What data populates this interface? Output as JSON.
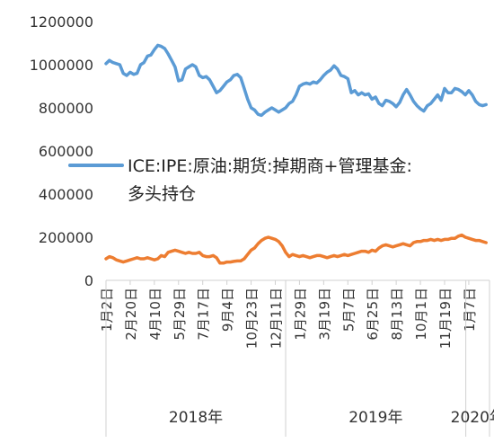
{
  "chart_data": {
    "type": "line",
    "yticks": [
      "0",
      "200000",
      "400000",
      "600000",
      "800000",
      "1000000",
      "1200000"
    ],
    "ylim": [
      0,
      1200000
    ],
    "xlim": [
      "2018-01-02",
      "2020-02-18"
    ],
    "grid": false,
    "x_ticks": [
      {
        "label": "1月2日",
        "date": "2018-01-02"
      },
      {
        "label": "2月20日",
        "date": "2018-02-20"
      },
      {
        "label": "4月10日",
        "date": "2018-04-10"
      },
      {
        "label": "5月29日",
        "date": "2018-05-29"
      },
      {
        "label": "7月17日",
        "date": "2018-07-17"
      },
      {
        "label": "9月4日",
        "date": "2018-09-04"
      },
      {
        "label": "10月23日",
        "date": "2018-10-23"
      },
      {
        "label": "12月11日",
        "date": "2018-12-11"
      },
      {
        "label": "1月29日",
        "date": "2019-01-29"
      },
      {
        "label": "3月19日",
        "date": "2019-03-19"
      },
      {
        "label": "5月7日",
        "date": "2019-05-07"
      },
      {
        "label": "6月25日",
        "date": "2019-06-25"
      },
      {
        "label": "8月13日",
        "date": "2019-08-13"
      },
      {
        "label": "10月1日",
        "date": "2019-10-01"
      },
      {
        "label": "11月19日",
        "date": "2019-11-19"
      },
      {
        "label": "1月7日",
        "date": "2020-01-07"
      }
    ],
    "year_groups": [
      {
        "label": "2018年",
        "start": "2018-01-01",
        "end": "2019-01-01"
      },
      {
        "label": "2019年",
        "start": "2019-01-01",
        "end": "2020-01-01"
      },
      {
        "label": "2020年",
        "start": "2020-01-01",
        "end": "2020-02-18"
      }
    ],
    "legend": {
      "position": "upper-left",
      "lines": [
        "ICE:IPE:原油:期货:掉期商+管理基金:",
        "多头持仓"
      ]
    },
    "series": [
      {
        "name": "ICE:IPE:原油:期货:掉期商+管理基金:多头持仓",
        "color": "#5b9bd5",
        "points": [
          [
            "2018-01-02",
            1005000
          ],
          [
            "2018-01-09",
            1020000
          ],
          [
            "2018-01-16",
            1010000
          ],
          [
            "2018-01-23",
            1005000
          ],
          [
            "2018-01-30",
            1000000
          ],
          [
            "2018-02-06",
            960000
          ],
          [
            "2018-02-13",
            950000
          ],
          [
            "2018-02-20",
            965000
          ],
          [
            "2018-02-27",
            955000
          ],
          [
            "2018-03-06",
            960000
          ],
          [
            "2018-03-13",
            1000000
          ],
          [
            "2018-03-20",
            1010000
          ],
          [
            "2018-03-27",
            1040000
          ],
          [
            "2018-04-03",
            1045000
          ],
          [
            "2018-04-10",
            1070000
          ],
          [
            "2018-04-17",
            1090000
          ],
          [
            "2018-04-24",
            1085000
          ],
          [
            "2018-05-01",
            1075000
          ],
          [
            "2018-05-08",
            1050000
          ],
          [
            "2018-05-15",
            1020000
          ],
          [
            "2018-05-22",
            990000
          ],
          [
            "2018-05-29",
            925000
          ],
          [
            "2018-06-05",
            930000
          ],
          [
            "2018-06-12",
            980000
          ],
          [
            "2018-06-19",
            990000
          ],
          [
            "2018-06-26",
            1000000
          ],
          [
            "2018-07-03",
            990000
          ],
          [
            "2018-07-10",
            950000
          ],
          [
            "2018-07-17",
            940000
          ],
          [
            "2018-07-24",
            945000
          ],
          [
            "2018-07-31",
            930000
          ],
          [
            "2018-08-07",
            900000
          ],
          [
            "2018-08-14",
            870000
          ],
          [
            "2018-08-21",
            880000
          ],
          [
            "2018-08-28",
            900000
          ],
          [
            "2018-09-04",
            920000
          ],
          [
            "2018-09-11",
            930000
          ],
          [
            "2018-09-18",
            950000
          ],
          [
            "2018-09-25",
            955000
          ],
          [
            "2018-10-02",
            940000
          ],
          [
            "2018-10-09",
            890000
          ],
          [
            "2018-10-16",
            840000
          ],
          [
            "2018-10-23",
            800000
          ],
          [
            "2018-10-30",
            790000
          ],
          [
            "2018-11-06",
            770000
          ],
          [
            "2018-11-13",
            765000
          ],
          [
            "2018-11-20",
            780000
          ],
          [
            "2018-11-27",
            790000
          ],
          [
            "2018-12-04",
            800000
          ],
          [
            "2018-12-11",
            790000
          ],
          [
            "2018-12-18",
            780000
          ],
          [
            "2018-12-25",
            790000
          ],
          [
            "2019-01-01",
            800000
          ],
          [
            "2019-01-08",
            820000
          ],
          [
            "2019-01-15",
            830000
          ],
          [
            "2019-01-22",
            860000
          ],
          [
            "2019-01-29",
            900000
          ],
          [
            "2019-02-05",
            910000
          ],
          [
            "2019-02-12",
            915000
          ],
          [
            "2019-02-19",
            910000
          ],
          [
            "2019-02-26",
            920000
          ],
          [
            "2019-03-05",
            915000
          ],
          [
            "2019-03-12",
            930000
          ],
          [
            "2019-03-19",
            950000
          ],
          [
            "2019-03-26",
            965000
          ],
          [
            "2019-04-02",
            975000
          ],
          [
            "2019-04-09",
            995000
          ],
          [
            "2019-04-16",
            980000
          ],
          [
            "2019-04-23",
            950000
          ],
          [
            "2019-04-30",
            945000
          ],
          [
            "2019-05-07",
            935000
          ],
          [
            "2019-05-14",
            870000
          ],
          [
            "2019-05-21",
            880000
          ],
          [
            "2019-05-28",
            860000
          ],
          [
            "2019-06-04",
            870000
          ],
          [
            "2019-06-11",
            860000
          ],
          [
            "2019-06-18",
            865000
          ],
          [
            "2019-06-25",
            840000
          ],
          [
            "2019-07-02",
            850000
          ],
          [
            "2019-07-09",
            820000
          ],
          [
            "2019-07-16",
            810000
          ],
          [
            "2019-07-23",
            835000
          ],
          [
            "2019-07-30",
            830000
          ],
          [
            "2019-08-06",
            820000
          ],
          [
            "2019-08-13",
            805000
          ],
          [
            "2019-08-20",
            825000
          ],
          [
            "2019-08-27",
            860000
          ],
          [
            "2019-09-03",
            885000
          ],
          [
            "2019-09-10",
            860000
          ],
          [
            "2019-09-17",
            830000
          ],
          [
            "2019-09-24",
            810000
          ],
          [
            "2019-10-01",
            795000
          ],
          [
            "2019-10-08",
            785000
          ],
          [
            "2019-10-15",
            810000
          ],
          [
            "2019-10-22",
            820000
          ],
          [
            "2019-10-29",
            840000
          ],
          [
            "2019-11-05",
            860000
          ],
          [
            "2019-11-12",
            835000
          ],
          [
            "2019-11-19",
            890000
          ],
          [
            "2019-11-26",
            870000
          ],
          [
            "2019-12-03",
            870000
          ],
          [
            "2019-12-10",
            890000
          ],
          [
            "2019-12-17",
            885000
          ],
          [
            "2019-12-24",
            875000
          ],
          [
            "2019-12-31",
            860000
          ],
          [
            "2020-01-07",
            880000
          ],
          [
            "2020-01-14",
            860000
          ],
          [
            "2020-01-21",
            830000
          ],
          [
            "2020-01-28",
            815000
          ],
          [
            "2020-02-04",
            810000
          ],
          [
            "2020-02-11",
            815000
          ]
        ]
      },
      {
        "name": "",
        "color": "#ed7d31",
        "points": [
          [
            "2018-01-02",
            100000
          ],
          [
            "2018-01-09",
            110000
          ],
          [
            "2018-01-16",
            105000
          ],
          [
            "2018-01-23",
            95000
          ],
          [
            "2018-01-30",
            90000
          ],
          [
            "2018-02-06",
            85000
          ],
          [
            "2018-02-13",
            90000
          ],
          [
            "2018-02-20",
            95000
          ],
          [
            "2018-02-27",
            100000
          ],
          [
            "2018-03-06",
            105000
          ],
          [
            "2018-03-13",
            100000
          ],
          [
            "2018-03-20",
            100000
          ],
          [
            "2018-03-27",
            105000
          ],
          [
            "2018-04-03",
            100000
          ],
          [
            "2018-04-10",
            95000
          ],
          [
            "2018-04-17",
            100000
          ],
          [
            "2018-04-24",
            115000
          ],
          [
            "2018-05-01",
            110000
          ],
          [
            "2018-05-08",
            130000
          ],
          [
            "2018-05-15",
            135000
          ],
          [
            "2018-05-22",
            140000
          ],
          [
            "2018-05-29",
            135000
          ],
          [
            "2018-06-05",
            130000
          ],
          [
            "2018-06-12",
            125000
          ],
          [
            "2018-06-19",
            130000
          ],
          [
            "2018-06-26",
            125000
          ],
          [
            "2018-07-03",
            125000
          ],
          [
            "2018-07-10",
            130000
          ],
          [
            "2018-07-17",
            115000
          ],
          [
            "2018-07-24",
            110000
          ],
          [
            "2018-07-31",
            110000
          ],
          [
            "2018-08-07",
            115000
          ],
          [
            "2018-08-14",
            105000
          ],
          [
            "2018-08-21",
            80000
          ],
          [
            "2018-08-28",
            80000
          ],
          [
            "2018-09-04",
            85000
          ],
          [
            "2018-09-11",
            85000
          ],
          [
            "2018-09-18",
            88000
          ],
          [
            "2018-09-25",
            90000
          ],
          [
            "2018-10-02",
            90000
          ],
          [
            "2018-10-09",
            100000
          ],
          [
            "2018-10-16",
            120000
          ],
          [
            "2018-10-23",
            140000
          ],
          [
            "2018-10-30",
            150000
          ],
          [
            "2018-11-06",
            170000
          ],
          [
            "2018-11-13",
            185000
          ],
          [
            "2018-11-20",
            195000
          ],
          [
            "2018-11-27",
            200000
          ],
          [
            "2018-12-04",
            195000
          ],
          [
            "2018-12-11",
            190000
          ],
          [
            "2018-12-18",
            180000
          ],
          [
            "2018-12-25",
            160000
          ],
          [
            "2019-01-01",
            130000
          ],
          [
            "2019-01-08",
            110000
          ],
          [
            "2019-01-15",
            120000
          ],
          [
            "2019-01-22",
            115000
          ],
          [
            "2019-01-29",
            110000
          ],
          [
            "2019-02-05",
            115000
          ],
          [
            "2019-02-12",
            110000
          ],
          [
            "2019-02-19",
            105000
          ],
          [
            "2019-02-26",
            110000
          ],
          [
            "2019-03-05",
            115000
          ],
          [
            "2019-03-12",
            115000
          ],
          [
            "2019-03-19",
            110000
          ],
          [
            "2019-03-26",
            105000
          ],
          [
            "2019-04-02",
            110000
          ],
          [
            "2019-04-09",
            115000
          ],
          [
            "2019-04-16",
            110000
          ],
          [
            "2019-04-23",
            115000
          ],
          [
            "2019-04-30",
            120000
          ],
          [
            "2019-05-07",
            115000
          ],
          [
            "2019-05-14",
            120000
          ],
          [
            "2019-05-21",
            125000
          ],
          [
            "2019-05-28",
            130000
          ],
          [
            "2019-06-04",
            135000
          ],
          [
            "2019-06-11",
            135000
          ],
          [
            "2019-06-18",
            130000
          ],
          [
            "2019-06-25",
            140000
          ],
          [
            "2019-07-02",
            135000
          ],
          [
            "2019-07-09",
            150000
          ],
          [
            "2019-07-16",
            160000
          ],
          [
            "2019-07-23",
            165000
          ],
          [
            "2019-07-30",
            160000
          ],
          [
            "2019-08-06",
            155000
          ],
          [
            "2019-08-13",
            160000
          ],
          [
            "2019-08-20",
            165000
          ],
          [
            "2019-08-27",
            170000
          ],
          [
            "2019-09-03",
            165000
          ],
          [
            "2019-09-10",
            160000
          ],
          [
            "2019-09-17",
            175000
          ],
          [
            "2019-09-24",
            180000
          ],
          [
            "2019-10-01",
            180000
          ],
          [
            "2019-10-08",
            185000
          ],
          [
            "2019-10-15",
            185000
          ],
          [
            "2019-10-22",
            190000
          ],
          [
            "2019-10-29",
            185000
          ],
          [
            "2019-11-05",
            190000
          ],
          [
            "2019-11-12",
            185000
          ],
          [
            "2019-11-19",
            190000
          ],
          [
            "2019-11-26",
            190000
          ],
          [
            "2019-12-03",
            195000
          ],
          [
            "2019-12-10",
            195000
          ],
          [
            "2019-12-17",
            205000
          ],
          [
            "2019-12-24",
            210000
          ],
          [
            "2019-12-31",
            200000
          ],
          [
            "2020-01-07",
            195000
          ],
          [
            "2020-01-14",
            190000
          ],
          [
            "2020-01-21",
            185000
          ],
          [
            "2020-01-28",
            185000
          ],
          [
            "2020-02-04",
            180000
          ],
          [
            "2020-02-11",
            175000
          ]
        ]
      }
    ]
  }
}
